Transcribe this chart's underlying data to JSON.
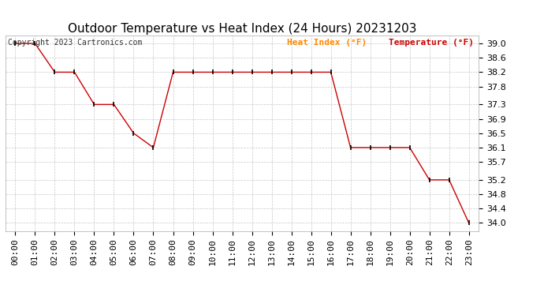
{
  "title": "Outdoor Temperature vs Heat Index (24 Hours) 20231203",
  "copyright_text": "Copyright 2023 Cartronics.com",
  "legend_heat_index": "Heat Index (°F)",
  "legend_temperature": "Temperature (°F)",
  "x_labels": [
    "00:00",
    "01:00",
    "02:00",
    "03:00",
    "04:00",
    "05:00",
    "06:00",
    "07:00",
    "08:00",
    "09:00",
    "10:00",
    "11:00",
    "12:00",
    "13:00",
    "14:00",
    "15:00",
    "16:00",
    "17:00",
    "18:00",
    "19:00",
    "20:00",
    "21:00",
    "22:00",
    "23:00"
  ],
  "temperature": [
    39.0,
    39.0,
    38.2,
    38.2,
    37.3,
    37.3,
    36.5,
    36.1,
    38.2,
    38.2,
    38.2,
    38.2,
    38.2,
    38.2,
    38.2,
    38.2,
    38.2,
    36.1,
    36.1,
    36.1,
    36.1,
    35.2,
    35.2,
    34.0
  ],
  "y_ticks": [
    34.0,
    34.4,
    34.8,
    35.2,
    35.7,
    36.1,
    36.5,
    36.9,
    37.3,
    37.8,
    38.2,
    38.6,
    39.0
  ],
  "ylim_min": 33.78,
  "ylim_max": 39.22,
  "line_color": "#cc0000",
  "marker_color": "#000000",
  "heat_index_legend_color": "#ff8800",
  "temperature_legend_color": "#cc0000",
  "bg_color": "#ffffff",
  "grid_color": "#c8c8c8",
  "title_fontsize": 11,
  "tick_fontsize": 8,
  "legend_fontsize": 8,
  "copyright_fontsize": 7
}
